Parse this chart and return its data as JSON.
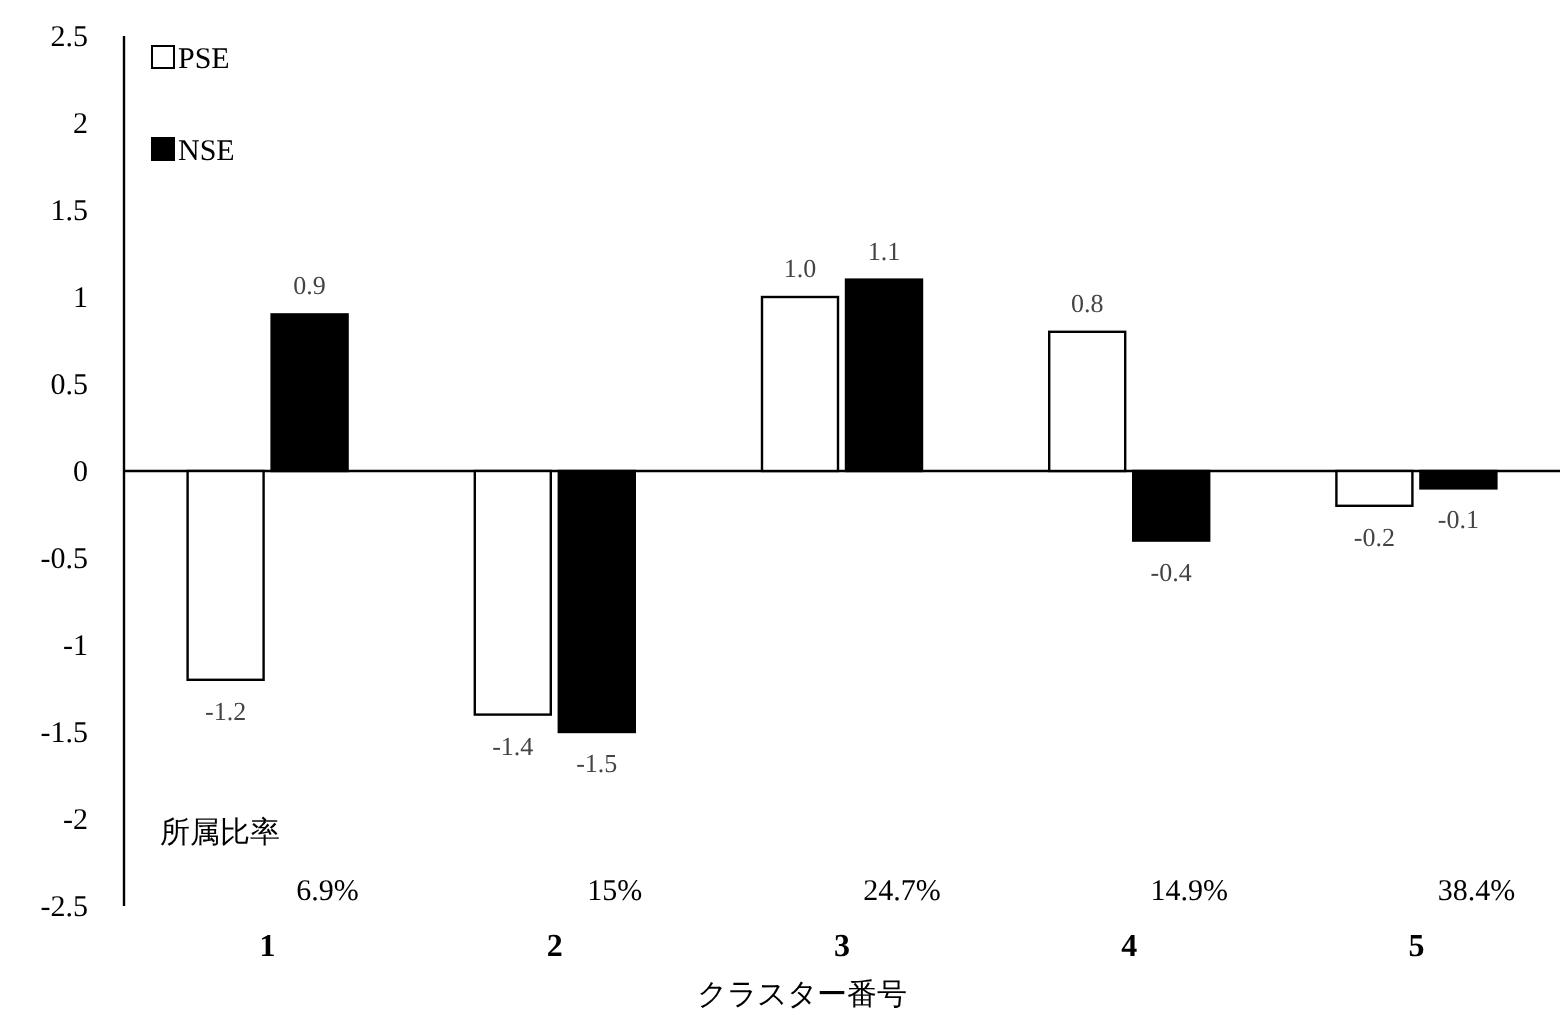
{
  "chart_data": {
    "type": "bar",
    "xlabel": "クラスター番号",
    "categories": [
      "1",
      "2",
      "3",
      "4",
      "5"
    ],
    "series": [
      {
        "name": "PSE",
        "color": "#ffffff",
        "values": [
          -1.2,
          -1.4,
          1.0,
          0.8,
          -0.2
        ],
        "value_labels": [
          "-1.2",
          "-1.4",
          "1.0",
          "0.8",
          "-0.2"
        ]
      },
      {
        "name": "NSE",
        "color": "#000000",
        "values": [
          0.9,
          -1.5,
          1.1,
          -0.4,
          -0.1
        ],
        "value_labels": [
          "0.9",
          "-1.5",
          "1.1",
          "-0.4",
          "-0.1"
        ]
      }
    ],
    "ylim": [
      -2.5,
      2.5
    ],
    "yticks": [
      -2.5,
      -2,
      -1.5,
      -1,
      -0.5,
      0,
      0.5,
      1,
      1.5,
      2,
      2.5
    ],
    "legend": "top left",
    "annotations": [
      "所属比率",
      "6.9%",
      "15%",
      "24.7%",
      "14.9%",
      "38.4%"
    ]
  }
}
